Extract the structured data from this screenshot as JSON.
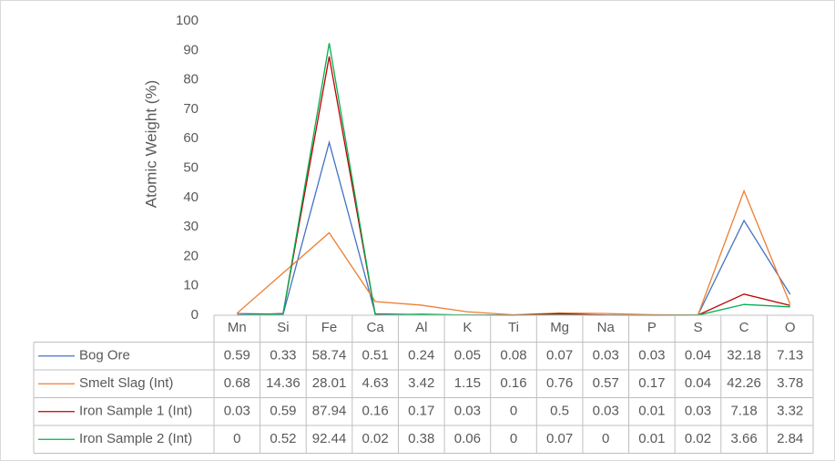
{
  "chart_data": {
    "type": "line",
    "y_label": "Atomic Weight (%)",
    "categories": [
      "Mn",
      "Si",
      "Fe",
      "Ca",
      "Al",
      "K",
      "Ti",
      "Mg",
      "Na",
      "P",
      "S",
      "C",
      "O"
    ],
    "series": [
      {
        "name": "Bog Ore",
        "color": "#4472c4",
        "values": [
          0.59,
          0.33,
          58.74,
          0.51,
          0.24,
          0.05,
          0.08,
          0.07,
          0.03,
          0.03,
          0.04,
          32.18,
          7.13
        ]
      },
      {
        "name": "Smelt Slag (Int)",
        "color": "#ed7d31",
        "values": [
          0.68,
          14.36,
          28.01,
          4.63,
          3.42,
          1.15,
          0.16,
          0.76,
          0.57,
          0.17,
          0.04,
          42.26,
          3.78
        ]
      },
      {
        "name": "Iron Sample 1 (Int)",
        "color": "#c00000",
        "values": [
          0.03,
          0.59,
          87.94,
          0.16,
          0.17,
          0.03,
          0,
          0.5,
          0.03,
          0.01,
          0.03,
          7.18,
          3.32
        ]
      },
      {
        "name": "Iron Sample 2 (Int)",
        "color": "#00b050",
        "values": [
          0,
          0.52,
          92.44,
          0.02,
          0.38,
          0.06,
          0,
          0.07,
          0,
          0.01,
          0.02,
          3.66,
          2.84
        ]
      }
    ],
    "ylim": [
      0,
      100
    ],
    "yticks": [
      0,
      10,
      20,
      30,
      40,
      50,
      60,
      70,
      80,
      90,
      100
    ],
    "grid": false,
    "data_table": true
  }
}
